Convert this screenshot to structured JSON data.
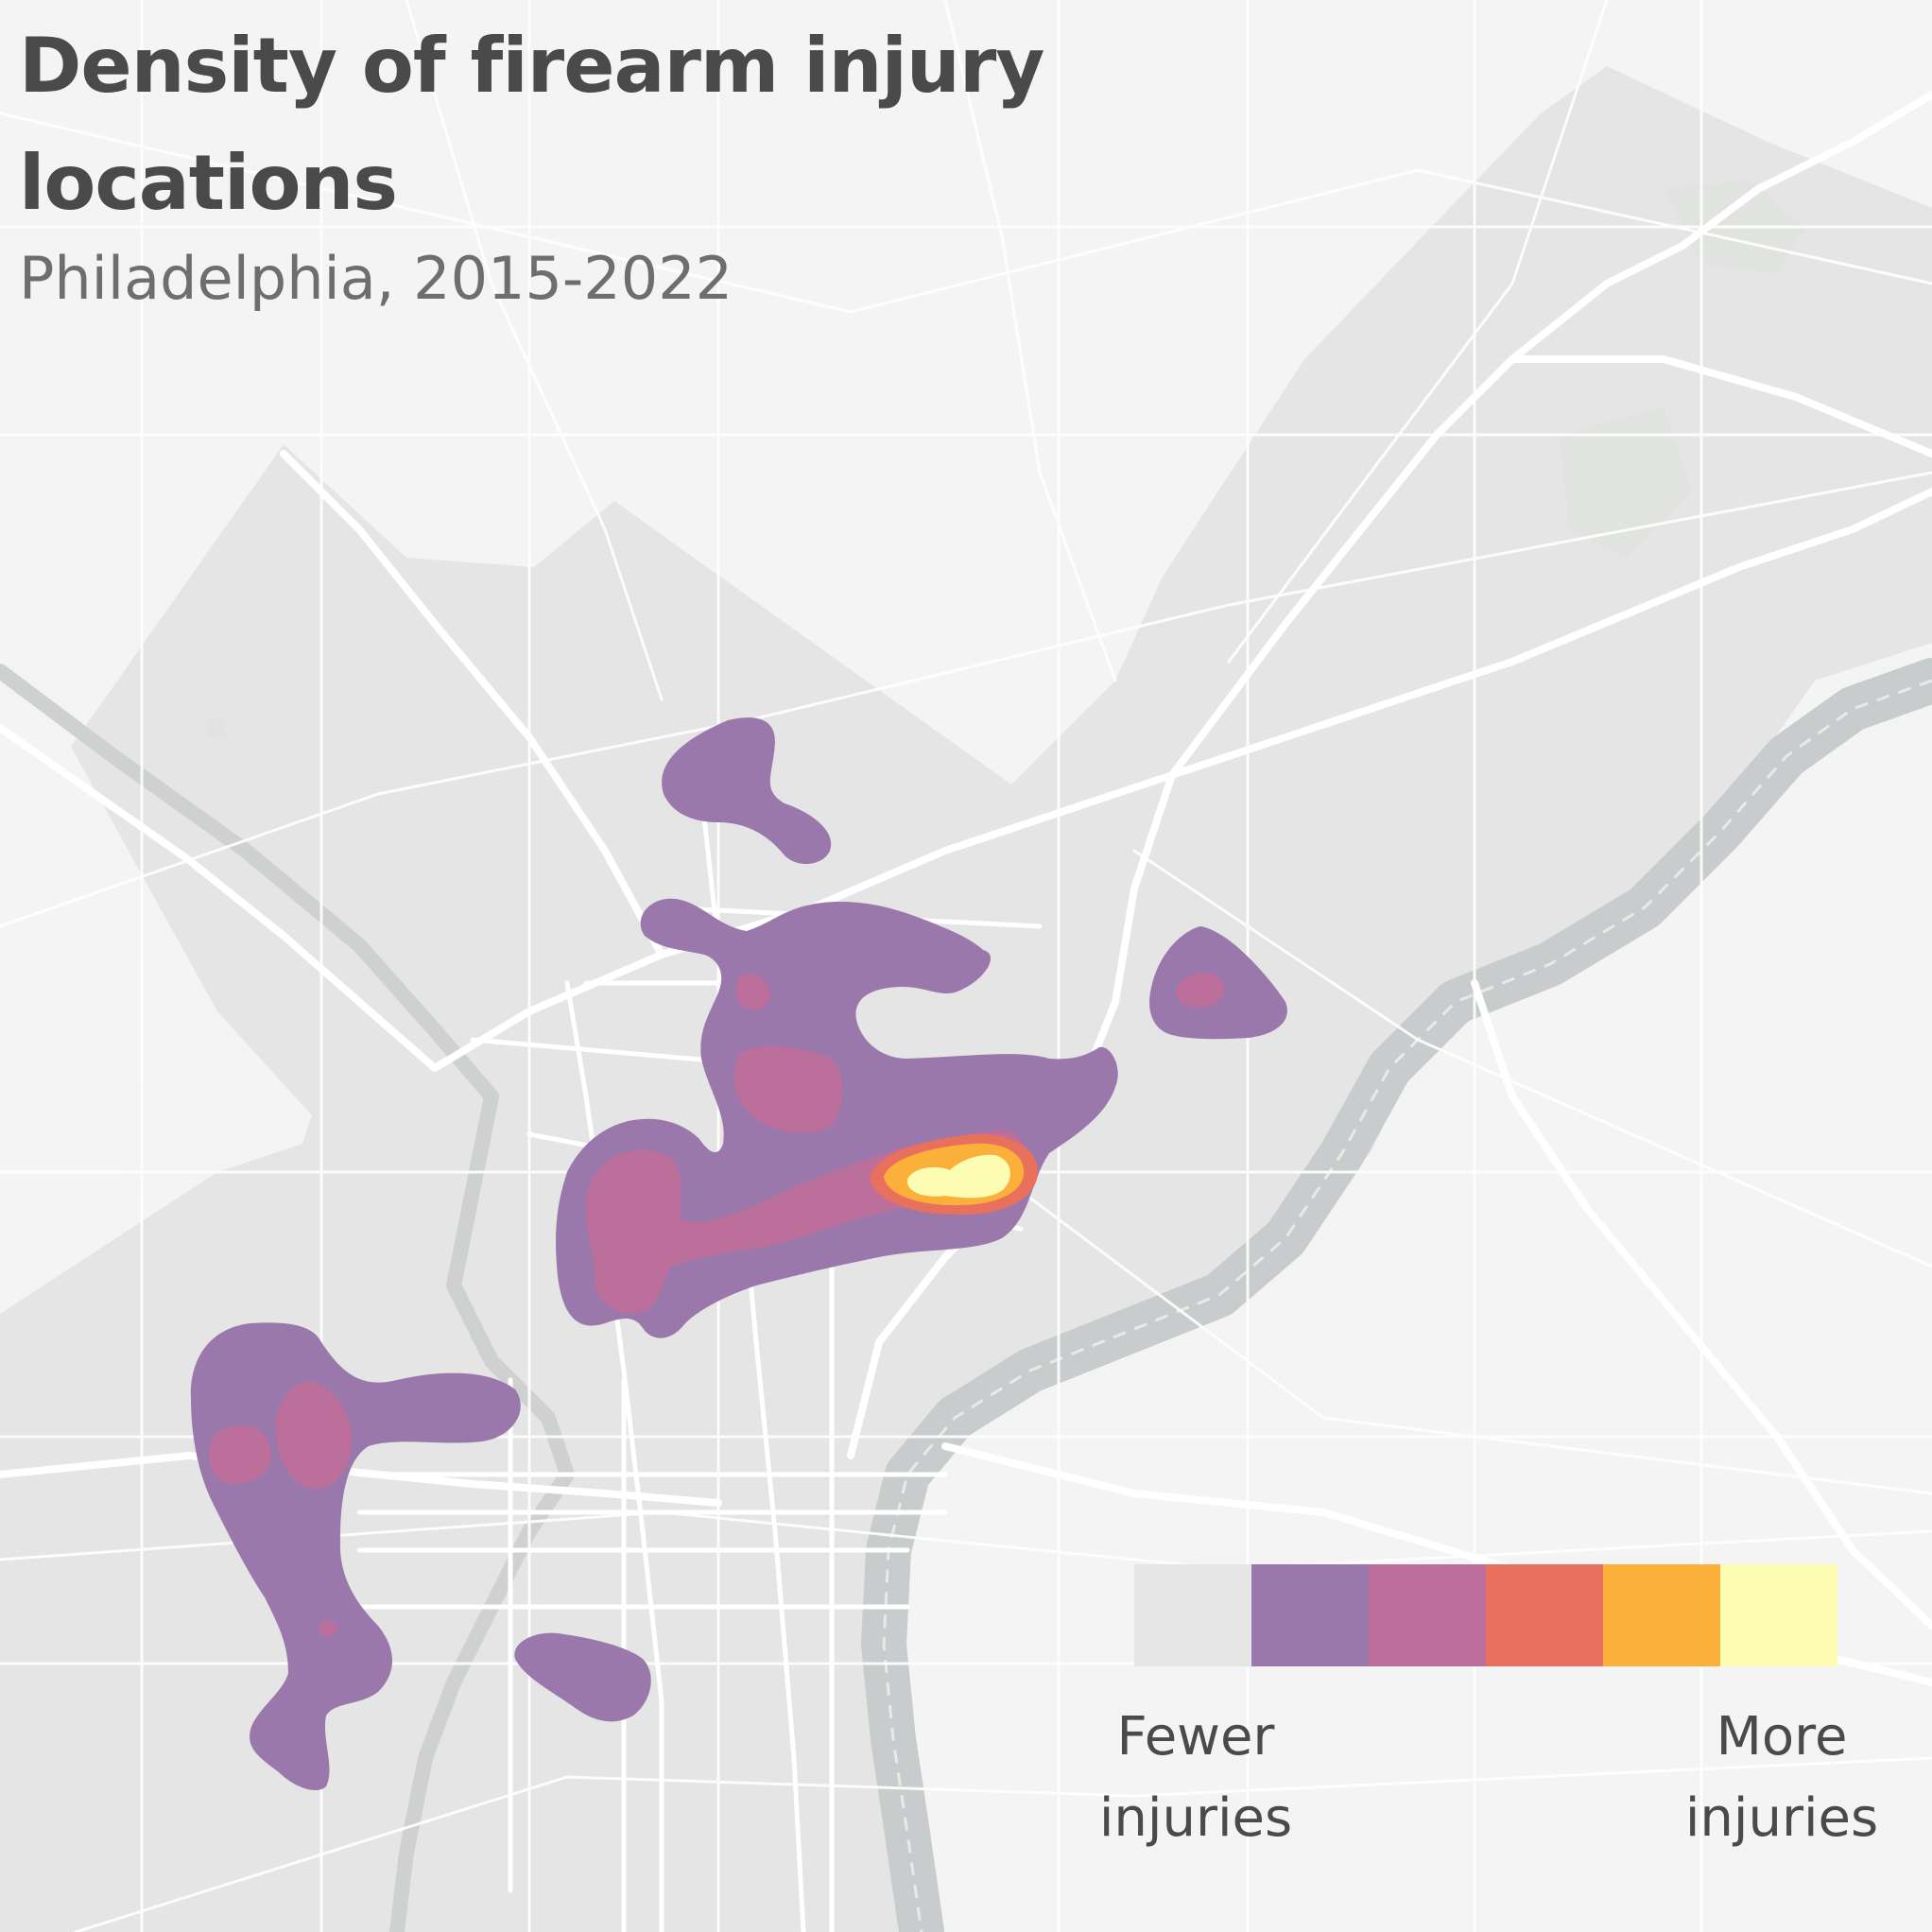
{
  "title": "Density of firearm injury locations",
  "subtitle": "Philadelphia, 2015-2022",
  "legend": {
    "colors": [
      "#e6e6e6",
      "#9a78ab",
      "#bb6f9a",
      "#e8705c",
      "#fbb03a",
      "#fcfcb2"
    ],
    "low_label": "Fewer injuries",
    "high_label": "More injuries"
  },
  "map": {
    "land_color": "#f4f4f4",
    "city_color": "#e5e5e5",
    "road_color": "#ffffff",
    "river_color": "#c9cccc",
    "park_color": "#e4e7e2"
  }
}
